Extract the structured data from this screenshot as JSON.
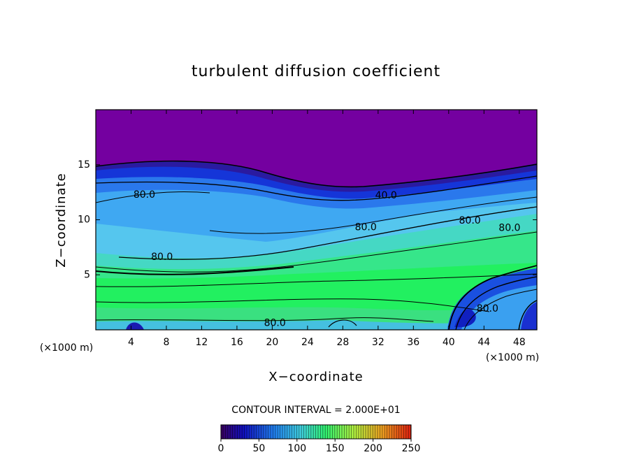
{
  "chart_data": {
    "type": "contour",
    "title": "turbulent diffusion coefficient",
    "x_label": "X−coordinate",
    "y_label": "Z−coordinate",
    "x_unit_label": "(×1000 m)",
    "x_unit_label_right": "(×1000 m)",
    "xlim": [
      0,
      50
    ],
    "xticks": [
      4,
      8,
      12,
      16,
      20,
      24,
      28,
      32,
      36,
      40,
      44,
      48
    ],
    "ylim": [
      0,
      20
    ],
    "yticks": [
      5,
      10,
      15
    ],
    "contour_labels": [
      {
        "label": "80.0",
        "x": 5.5,
        "y": 12.25
      },
      {
        "label": "40.0",
        "x": 32.9,
        "y": 12.2
      },
      {
        "label": "80.0",
        "x": 30.6,
        "y": 9.3
      },
      {
        "label": "80.0",
        "x": 42.4,
        "y": 9.9
      },
      {
        "label": "80.0",
        "x": 46.9,
        "y": 9.25
      },
      {
        "label": "80.0",
        "x": 7.5,
        "y": 6.6
      },
      {
        "label": "80.0",
        "x": 44.4,
        "y": 1.9
      },
      {
        "label": "80.0",
        "x": 20.3,
        "y": 0.6
      }
    ],
    "contour_interval_label": "CONTOUR INTERVAL = 2.000E+01",
    "colorbar": {
      "lim": [
        0,
        250
      ],
      "ticks": [
        0,
        50,
        100,
        150,
        200,
        250
      ]
    }
  }
}
